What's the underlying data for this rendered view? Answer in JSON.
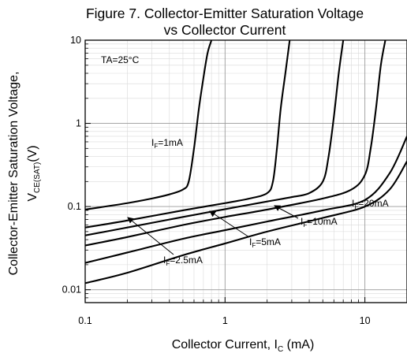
{
  "chart_data": {
    "type": "line",
    "title_line1": "Figure 7. Collector-Emitter Saturation Voltage",
    "title_line2": "vs Collector Current",
    "xlabel": "Collector Current, I",
    "xlabel_sub": "C",
    "xlabel_unit": " (mA)",
    "ylabel_line1": "Collector-Emitter Saturation Voltage,",
    "ylabel_line2_main": "V",
    "ylabel_line2_sub": "CE(SAT)",
    "ylabel_line2_unit": "(V)",
    "x_scale": "log",
    "y_scale": "log",
    "xlim": [
      0.1,
      20
    ],
    "ylim": [
      0.007,
      10
    ],
    "x_ticks": [
      0.1,
      1,
      10
    ],
    "x_tick_labels": [
      "0.1",
      "1",
      "10"
    ],
    "y_ticks": [
      0.01,
      0.1,
      1,
      10
    ],
    "y_tick_labels": [
      "0.01",
      "0.1",
      "1",
      "10"
    ],
    "grid": true,
    "condition_label": "TA=25°C",
    "series": [
      {
        "name": "IF=1mA",
        "label_main": "I",
        "label_sub": "F",
        "label_rest": "=1mA",
        "x": [
          0.1,
          0.2,
          0.3,
          0.4,
          0.5,
          0.55,
          0.6,
          0.65,
          0.7,
          0.75,
          0.8
        ],
        "y": [
          0.092,
          0.11,
          0.125,
          0.14,
          0.16,
          0.2,
          0.5,
          1.5,
          3.5,
          7,
          10
        ]
      },
      {
        "name": "IF=2.5mA",
        "label_main": "I",
        "label_sub": "F",
        "label_rest": "=2.5mA",
        "x": [
          0.1,
          0.2,
          0.5,
          1,
          1.5,
          2,
          2.2,
          2.35,
          2.5,
          2.7,
          2.9
        ],
        "y": [
          0.056,
          0.068,
          0.09,
          0.11,
          0.125,
          0.145,
          0.2,
          0.5,
          1.5,
          4,
          10
        ]
      },
      {
        "name": "IF=5mA",
        "label_main": "I",
        "label_sub": "F",
        "label_rest": "=5mA",
        "x": [
          0.1,
          0.2,
          0.5,
          1,
          2,
          3,
          4,
          5,
          5.5,
          6,
          6.5,
          7
        ],
        "y": [
          0.045,
          0.056,
          0.075,
          0.093,
          0.115,
          0.13,
          0.145,
          0.2,
          0.4,
          1.2,
          4,
          10
        ]
      },
      {
        "name": "IF=10mA",
        "label_main": "I",
        "label_sub": "F",
        "label_rest": "=10mA",
        "x": [
          0.1,
          0.2,
          0.5,
          1,
          2,
          5,
          8,
          10,
          11,
          12,
          13,
          14
        ],
        "y": [
          0.034,
          0.043,
          0.06,
          0.075,
          0.092,
          0.125,
          0.16,
          0.24,
          0.5,
          1.5,
          5,
          10
        ]
      },
      {
        "name": "IF=20mA",
        "label_main": "I",
        "label_sub": "F",
        "label_rest": "=20mA",
        "x": [
          0.1,
          0.2,
          0.5,
          1,
          2,
          5,
          10,
          15,
          20
        ],
        "y": [
          0.021,
          0.028,
          0.041,
          0.052,
          0.066,
          0.09,
          0.12,
          0.25,
          0.7
        ]
      },
      {
        "name": "",
        "label_main": "",
        "label_sub": "",
        "label_rest": "",
        "x": [
          0.1,
          0.2,
          0.5,
          1,
          2,
          5,
          10,
          15,
          20
        ],
        "y": [
          0.012,
          0.016,
          0.026,
          0.036,
          0.05,
          0.073,
          0.1,
          0.16,
          0.35
        ]
      }
    ]
  }
}
